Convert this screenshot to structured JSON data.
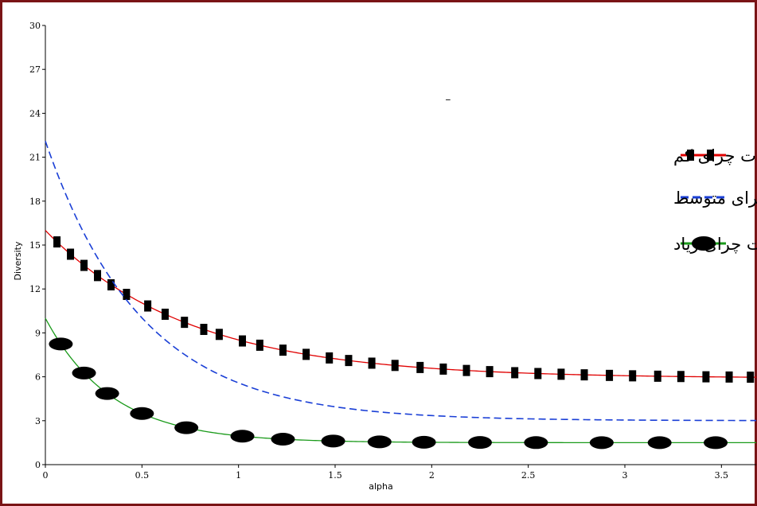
{
  "chart_data": {
    "type": "line",
    "xlabel": "alpha",
    "ylabel": "Diversity",
    "xlim": [
      0,
      3.68
    ],
    "ylim": [
      0,
      30
    ],
    "x_ticks": [
      "0",
      "0.5",
      "1",
      "1.5",
      "2",
      "2.5",
      "3",
      "3.5"
    ],
    "x_tick_values": [
      0,
      0.5,
      1,
      1.5,
      2,
      2.5,
      3,
      3.5
    ],
    "y_ticks": [
      "0",
      "3",
      "6",
      "9",
      "12",
      "15",
      "18",
      "21",
      "24",
      "27",
      "30"
    ],
    "y_tick_values": [
      0,
      3,
      6,
      9,
      12,
      15,
      18,
      21,
      24,
      27,
      30
    ],
    "grid": false,
    "legend_position": "right",
    "series": [
      {
        "name": "شدت چرای کم",
        "color": "#e00000",
        "line_style": "solid",
        "marker": "square",
        "curve": {
          "a": 10.1,
          "b": 1.35,
          "c": 5.9
        },
        "markers_x": [
          0.06,
          0.13,
          0.2,
          0.27,
          0.34,
          0.42,
          0.53,
          0.62,
          0.72,
          0.82,
          0.9,
          1.02,
          1.11,
          1.23,
          1.35,
          1.47,
          1.57,
          1.69,
          1.81,
          1.94,
          2.06,
          2.18,
          2.3,
          2.43,
          2.55,
          2.67,
          2.79,
          2.92,
          3.04,
          3.17,
          3.29,
          3.42,
          3.54,
          3.65
        ]
      },
      {
        "name": "شدت چرای متوسط",
        "color": "#1a3fd6",
        "line_style": "dashed",
        "marker": "none",
        "curve": {
          "a": 19.1,
          "b": 2.0,
          "c": 3.0
        }
      },
      {
        "name": "شدت چرای زیاد",
        "color": "#1a9a1a",
        "line_style": "solid",
        "marker": "ellipse",
        "curve": {
          "a": 8.5,
          "b": 2.9,
          "c": 1.5
        },
        "markers_x": [
          0.08,
          0.2,
          0.32,
          0.5,
          0.73,
          1.02,
          1.23,
          1.49,
          1.73,
          1.96,
          2.25,
          2.54,
          2.88,
          3.18,
          3.47
        ]
      }
    ],
    "stray_marks": [
      "–"
    ]
  }
}
